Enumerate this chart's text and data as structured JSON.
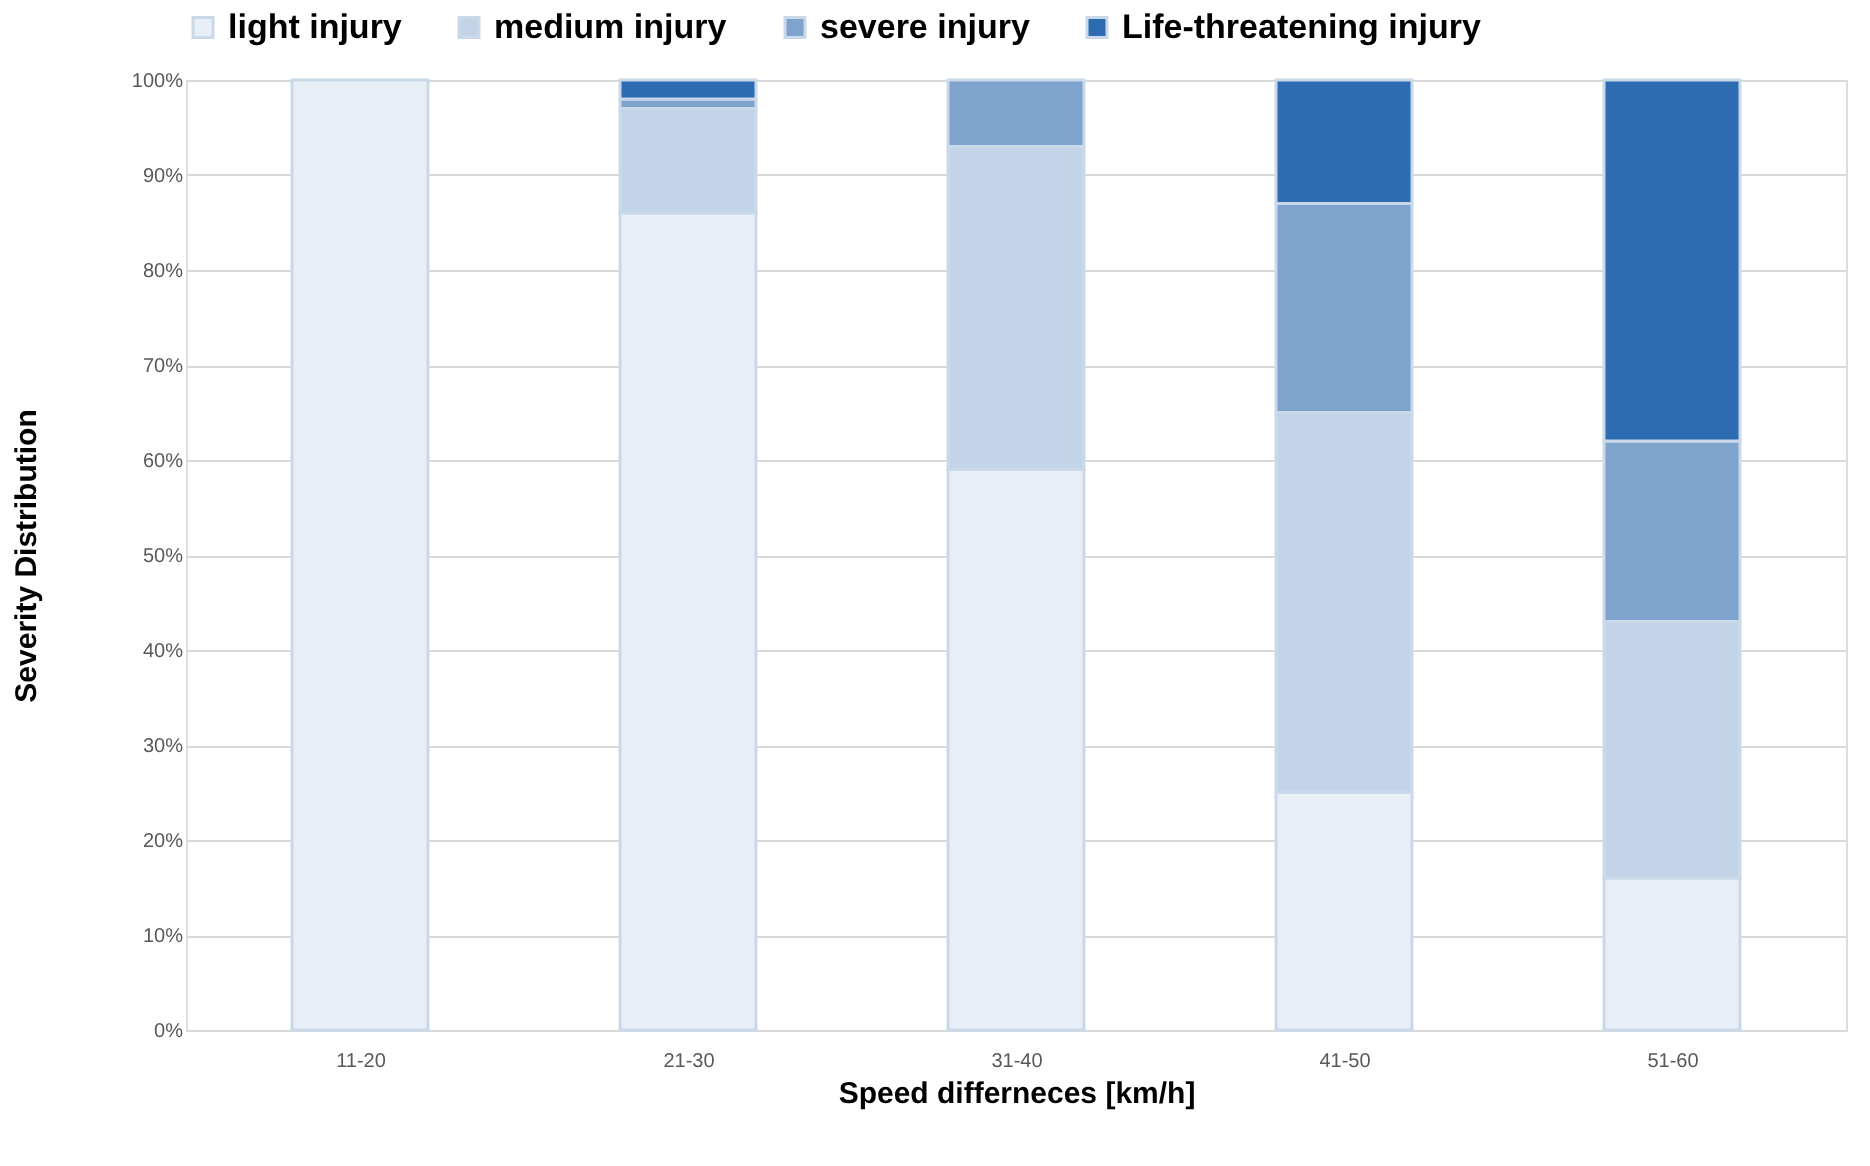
{
  "chart_data": {
    "type": "bar",
    "stacked": true,
    "xlabel": "Speed differneces [km/h]",
    "ylabel": "Severity Distribution",
    "categories": [
      "11-20",
      "21-30",
      "31-40",
      "41-50",
      "51-60"
    ],
    "series": [
      {
        "name": "light injury",
        "color": "#e9eff7",
        "values": [
          100,
          86,
          59,
          25,
          16
        ]
      },
      {
        "name": "medium injury",
        "color": "#c3d4e8",
        "values": [
          null,
          11,
          34,
          40,
          27
        ]
      },
      {
        "name": "severe injury",
        "color": "#7ea3cc",
        "values": [
          null,
          1,
          7,
          22,
          19
        ]
      },
      {
        "name": "Life-threatening injury",
        "color": "#2e6cb1",
        "values": [
          null,
          2,
          null,
          13,
          38
        ]
      }
    ],
    "ylim": [
      0,
      100
    ],
    "yticks": [
      {
        "value": 0,
        "label": "0%"
      },
      {
        "value": 10,
        "label": "10%"
      },
      {
        "value": 20,
        "label": "20%"
      },
      {
        "value": 30,
        "label": "30%"
      },
      {
        "value": 40,
        "label": "40%"
      },
      {
        "value": 50,
        "label": "50%"
      },
      {
        "value": 60,
        "label": "60%"
      },
      {
        "value": 70,
        "label": "70%"
      },
      {
        "value": 80,
        "label": "80%"
      },
      {
        "value": 90,
        "label": "90%"
      },
      {
        "value": 100,
        "label": "100%"
      }
    ],
    "grid": "y",
    "legend": "top"
  }
}
